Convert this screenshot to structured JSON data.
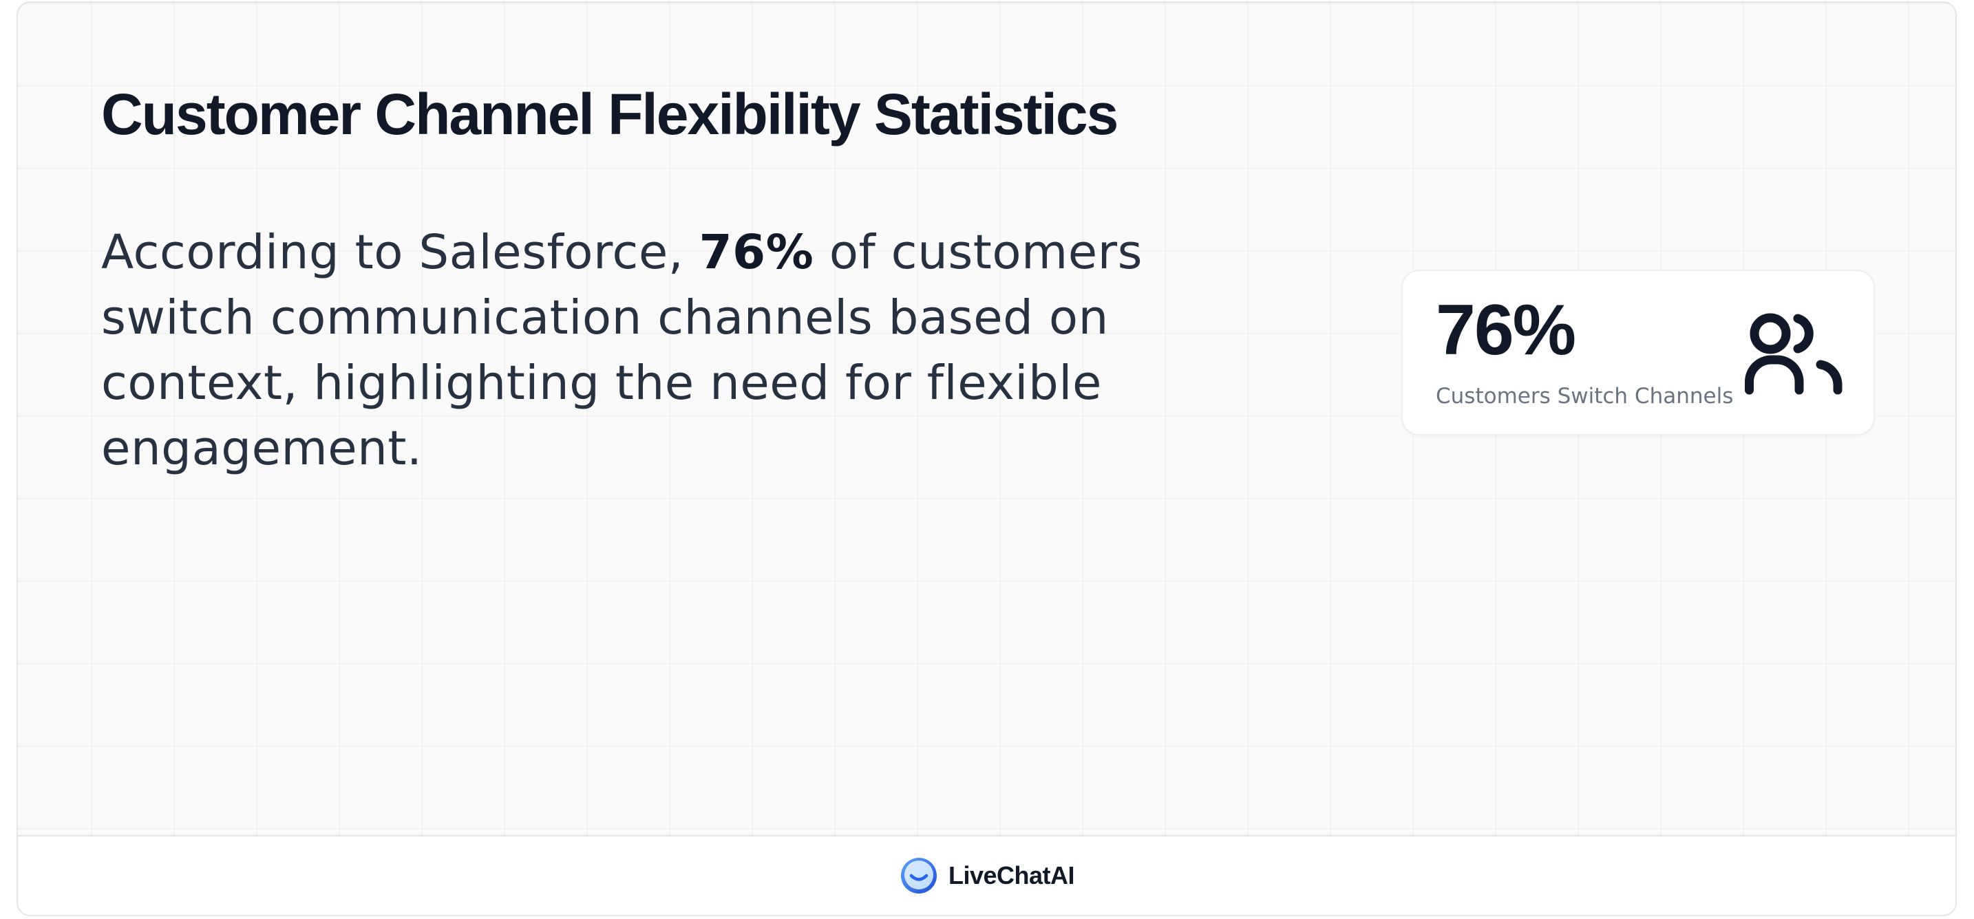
{
  "header": {
    "title": "Customer Channel Flexibility Statistics"
  },
  "body": {
    "text_before": "According to Salesforce, ",
    "highlight": "76%",
    "text_after": " of customers switch communication channels based on context, highlighting the need for flexible engagement."
  },
  "stat_card": {
    "value": "76%",
    "label": "Customers Switch Channels",
    "icon": "users-icon"
  },
  "footer": {
    "brand_name": "LiveChatAI",
    "logo_icon": "smile-logo-icon"
  },
  "colors": {
    "heading": "#111827",
    "body_text": "#273142",
    "muted": "#6b7280",
    "logo_blue": "#2563eb",
    "background": "#fafafa"
  }
}
